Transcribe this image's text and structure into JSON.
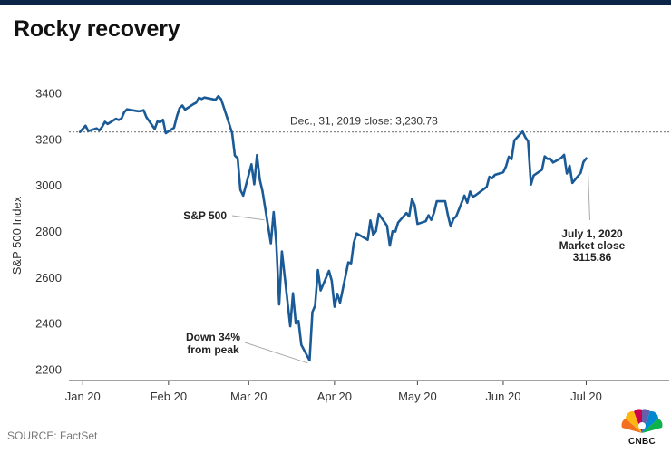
{
  "page": {
    "title": "Rocky recovery",
    "source": "SOURCE: FactSet",
    "logo_text": "CNBC"
  },
  "colors": {
    "line": "#1a5a96",
    "top_bar": "#0b2547",
    "leader": "#aaaaaa",
    "reference": "#888888"
  },
  "chart_data": {
    "type": "line",
    "title": "Rocky recovery",
    "ylabel": "S&P 500 Index",
    "xlabel": "",
    "ylim": [
      2150,
      3450
    ],
    "yticks": [
      2200,
      2400,
      2600,
      2800,
      3000,
      3200,
      3400
    ],
    "xlim": [
      "2019-12-27",
      "2020-07-31"
    ],
    "xticks": [
      {
        "date": "2020-01-01",
        "label": "Jan 20"
      },
      {
        "date": "2020-02-01",
        "label": "Feb 20"
      },
      {
        "date": "2020-03-01",
        "label": "Mar 20"
      },
      {
        "date": "2020-04-01",
        "label": "Apr 20"
      },
      {
        "date": "2020-05-01",
        "label": "May 20"
      },
      {
        "date": "2020-06-01",
        "label": "Jun 20"
      },
      {
        "date": "2020-07-01",
        "label": "Jul 20"
      }
    ],
    "grid": false,
    "legend": "none",
    "reference_line": {
      "y": 3230.78,
      "label": "Dec., 31, 2019 close:  3,230.78",
      "style": "dotted"
    },
    "series": [
      {
        "name": "S&P 500",
        "points": [
          [
            "2019-12-31",
            3230.78
          ],
          [
            "2020-01-02",
            3257.85
          ],
          [
            "2020-01-03",
            3234.85
          ],
          [
            "2020-01-06",
            3246.28
          ],
          [
            "2020-01-07",
            3237.18
          ],
          [
            "2020-01-08",
            3253.05
          ],
          [
            "2020-01-09",
            3274.7
          ],
          [
            "2020-01-10",
            3265.35
          ],
          [
            "2020-01-13",
            3288.13
          ],
          [
            "2020-01-14",
            3283.15
          ],
          [
            "2020-01-15",
            3289.29
          ],
          [
            "2020-01-16",
            3316.81
          ],
          [
            "2020-01-17",
            3329.62
          ],
          [
            "2020-01-21",
            3320.79
          ],
          [
            "2020-01-22",
            3321.75
          ],
          [
            "2020-01-23",
            3325.54
          ],
          [
            "2020-01-24",
            3295.47
          ],
          [
            "2020-01-27",
            3243.63
          ],
          [
            "2020-01-28",
            3276.24
          ],
          [
            "2020-01-29",
            3273.4
          ],
          [
            "2020-01-30",
            3283.66
          ],
          [
            "2020-01-31",
            3225.52
          ],
          [
            "2020-02-03",
            3248.92
          ],
          [
            "2020-02-04",
            3297.59
          ],
          [
            "2020-02-05",
            3334.69
          ],
          [
            "2020-02-06",
            3345.78
          ],
          [
            "2020-02-07",
            3327.71
          ],
          [
            "2020-02-10",
            3352.09
          ],
          [
            "2020-02-11",
            3357.75
          ],
          [
            "2020-02-12",
            3379.45
          ],
          [
            "2020-02-13",
            3373.94
          ],
          [
            "2020-02-14",
            3380.16
          ],
          [
            "2020-02-18",
            3370.29
          ],
          [
            "2020-02-19",
            3386.15
          ],
          [
            "2020-02-20",
            3373.23
          ],
          [
            "2020-02-21",
            3337.75
          ],
          [
            "2020-02-24",
            3225.89
          ],
          [
            "2020-02-25",
            3128.21
          ],
          [
            "2020-02-26",
            3116.39
          ],
          [
            "2020-02-27",
            2978.76
          ],
          [
            "2020-02-28",
            2954.22
          ],
          [
            "2020-03-02",
            3090.23
          ],
          [
            "2020-03-03",
            3003.37
          ],
          [
            "2020-03-04",
            3130.12
          ],
          [
            "2020-03-05",
            3023.94
          ],
          [
            "2020-03-06",
            2972.37
          ],
          [
            "2020-03-09",
            2746.56
          ],
          [
            "2020-03-10",
            2882.23
          ],
          [
            "2020-03-11",
            2741.38
          ],
          [
            "2020-03-12",
            2480.64
          ],
          [
            "2020-03-13",
            2711.02
          ],
          [
            "2020-03-16",
            2386.13
          ],
          [
            "2020-03-17",
            2529.19
          ],
          [
            "2020-03-18",
            2398.1
          ],
          [
            "2020-03-19",
            2409.39
          ],
          [
            "2020-03-20",
            2304.92
          ],
          [
            "2020-03-23",
            2237.4
          ],
          [
            "2020-03-24",
            2447.33
          ],
          [
            "2020-03-25",
            2475.56
          ],
          [
            "2020-03-26",
            2630.07
          ],
          [
            "2020-03-27",
            2541.47
          ],
          [
            "2020-03-30",
            2626.65
          ],
          [
            "2020-03-31",
            2584.59
          ],
          [
            "2020-04-01",
            2470.5
          ],
          [
            "2020-04-02",
            2526.9
          ],
          [
            "2020-04-03",
            2488.65
          ],
          [
            "2020-04-06",
            2663.68
          ],
          [
            "2020-04-07",
            2659.41
          ],
          [
            "2020-04-08",
            2749.98
          ],
          [
            "2020-04-09",
            2789.82
          ],
          [
            "2020-04-13",
            2761.63
          ],
          [
            "2020-04-14",
            2846.06
          ],
          [
            "2020-04-15",
            2783.36
          ],
          [
            "2020-04-16",
            2799.55
          ],
          [
            "2020-04-17",
            2874.56
          ],
          [
            "2020-04-20",
            2823.16
          ],
          [
            "2020-04-21",
            2736.56
          ],
          [
            "2020-04-22",
            2799.31
          ],
          [
            "2020-04-23",
            2797.8
          ],
          [
            "2020-04-24",
            2836.74
          ],
          [
            "2020-04-27",
            2878.48
          ],
          [
            "2020-04-28",
            2863.39
          ],
          [
            "2020-04-29",
            2939.51
          ],
          [
            "2020-04-30",
            2912.43
          ],
          [
            "2020-05-01",
            2830.71
          ],
          [
            "2020-05-04",
            2842.74
          ],
          [
            "2020-05-05",
            2868.44
          ],
          [
            "2020-05-06",
            2848.42
          ],
          [
            "2020-05-07",
            2881.19
          ],
          [
            "2020-05-08",
            2929.8
          ],
          [
            "2020-05-11",
            2930.19
          ],
          [
            "2020-05-12",
            2870.12
          ],
          [
            "2020-05-13",
            2820.0
          ],
          [
            "2020-05-14",
            2852.5
          ],
          [
            "2020-05-15",
            2863.7
          ],
          [
            "2020-05-18",
            2953.91
          ],
          [
            "2020-05-19",
            2922.94
          ],
          [
            "2020-05-20",
            2971.61
          ],
          [
            "2020-05-21",
            2948.51
          ],
          [
            "2020-05-22",
            2955.45
          ],
          [
            "2020-05-26",
            2991.77
          ],
          [
            "2020-05-27",
            3036.13
          ],
          [
            "2020-05-28",
            3029.73
          ],
          [
            "2020-05-29",
            3044.31
          ],
          [
            "2020-06-01",
            3055.73
          ],
          [
            "2020-06-02",
            3080.82
          ],
          [
            "2020-06-03",
            3122.87
          ],
          [
            "2020-06-04",
            3112.35
          ],
          [
            "2020-06-05",
            3193.93
          ],
          [
            "2020-06-08",
            3232.39
          ],
          [
            "2020-06-09",
            3207.18
          ],
          [
            "2020-06-10",
            3190.14
          ],
          [
            "2020-06-11",
            3002.1
          ],
          [
            "2020-06-12",
            3041.31
          ],
          [
            "2020-06-15",
            3066.59
          ],
          [
            "2020-06-16",
            3124.74
          ],
          [
            "2020-06-17",
            3113.49
          ],
          [
            "2020-06-18",
            3115.34
          ],
          [
            "2020-06-19",
            3097.74
          ],
          [
            "2020-06-22",
            3117.86
          ],
          [
            "2020-06-23",
            3131.29
          ],
          [
            "2020-06-24",
            3050.33
          ],
          [
            "2020-06-25",
            3083.76
          ],
          [
            "2020-06-26",
            3009.05
          ],
          [
            "2020-06-29",
            3053.24
          ],
          [
            "2020-06-30",
            3100.29
          ],
          [
            "2020-07-01",
            3115.86
          ]
        ]
      }
    ],
    "annotations": [
      {
        "text": "S&P 500",
        "date": "2020-03-06",
        "value": 2880
      },
      {
        "text": [
          "Down 34%",
          "from peak"
        ],
        "date": "2020-03-23",
        "value": 2237.4
      },
      {
        "text": [
          "July 1, 2020",
          "Market close",
          "3115.86"
        ],
        "date": "2020-07-01",
        "value": 3115.86
      }
    ]
  }
}
